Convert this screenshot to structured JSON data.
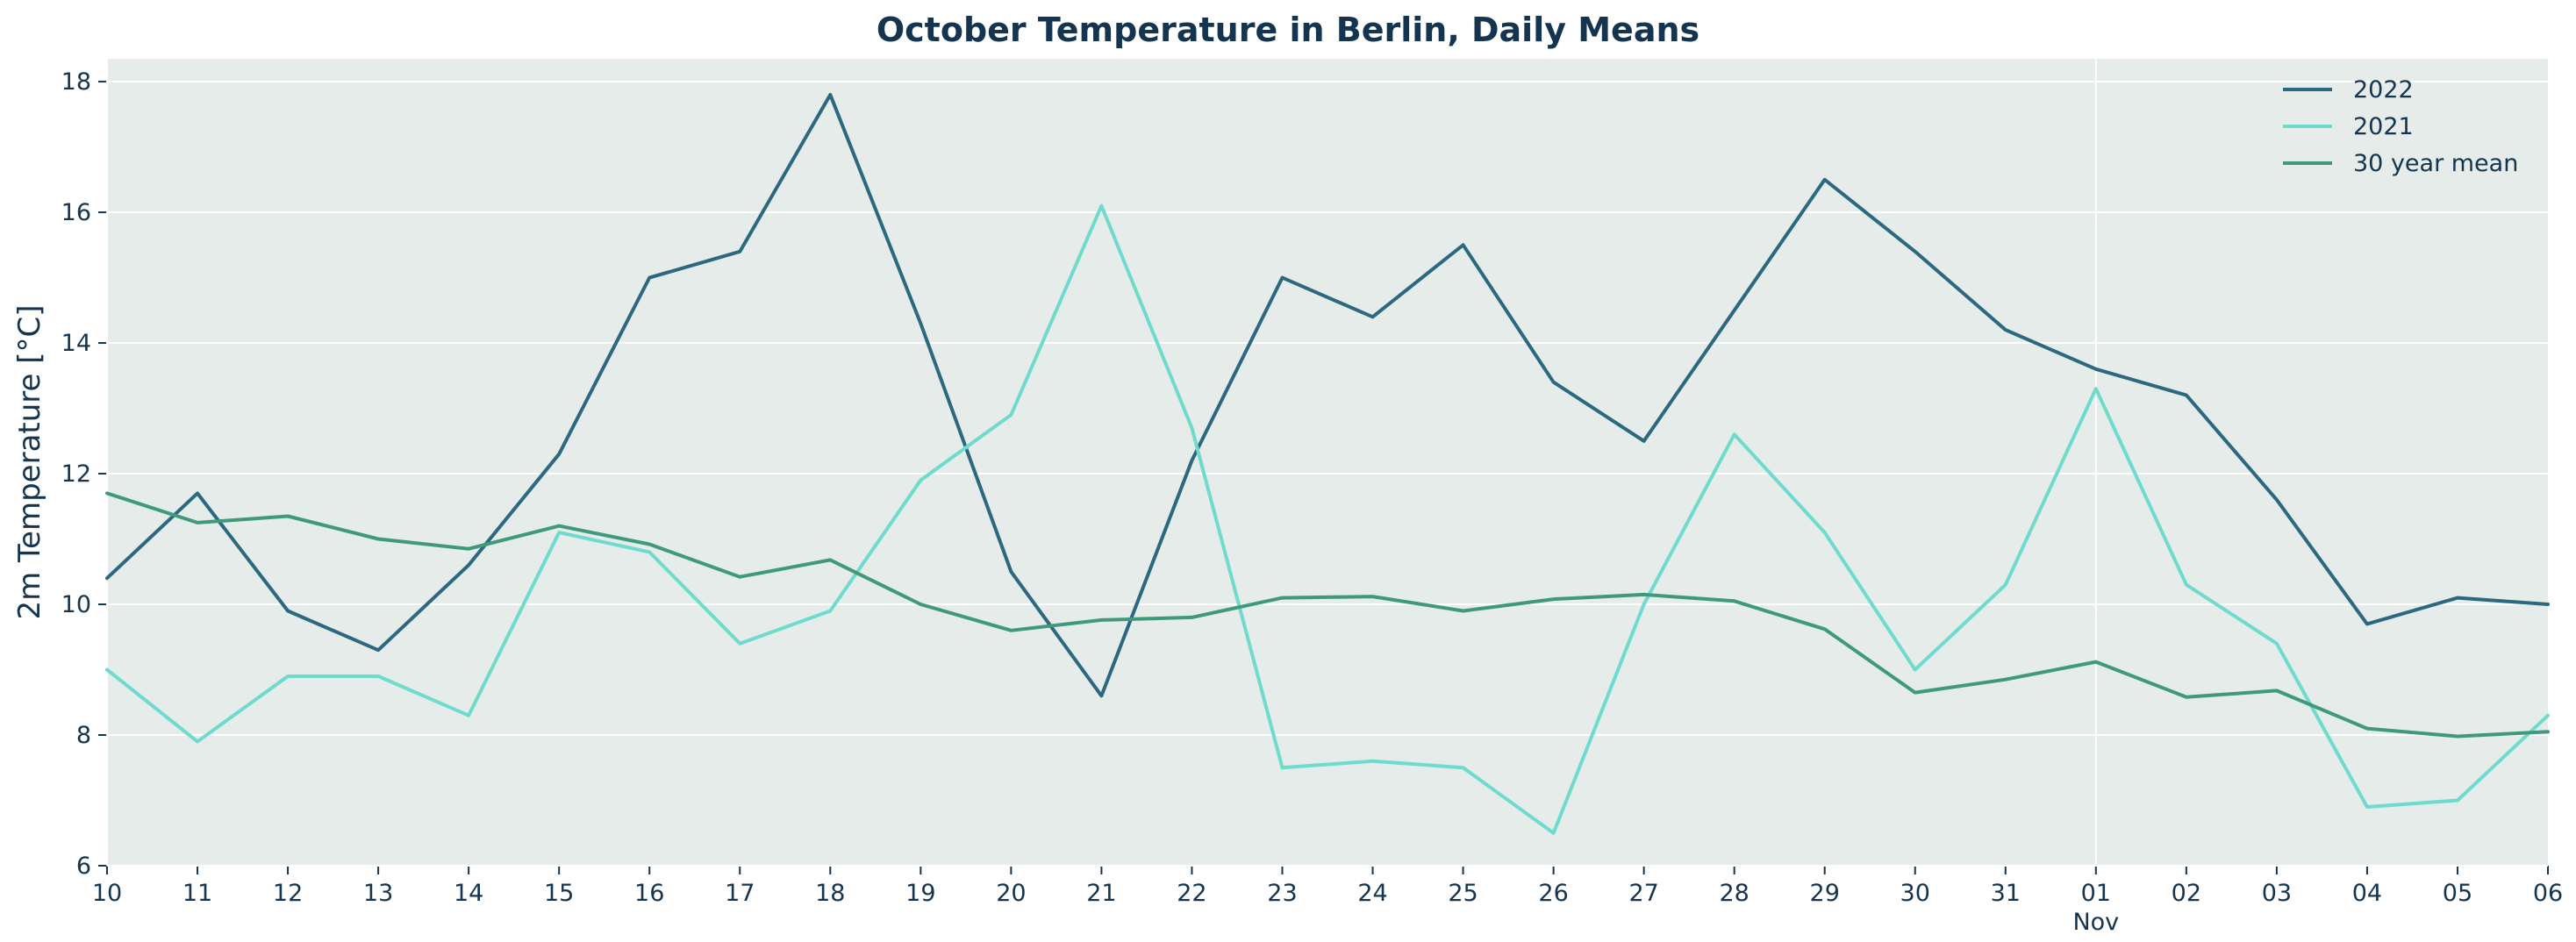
{
  "chart_data": {
    "type": "line",
    "title": "October Temperature in Berlin, Daily Means",
    "xlabel": "",
    "ylabel": "2m Temperature [°C]",
    "ylim": [
      6,
      18.35
    ],
    "yticks": [
      6,
      8,
      10,
      12,
      14,
      16,
      18
    ],
    "x": [
      "10",
      "11",
      "12",
      "13",
      "14",
      "15",
      "16",
      "17",
      "18",
      "19",
      "20",
      "21",
      "22",
      "23",
      "24",
      "25",
      "26",
      "27",
      "28",
      "29",
      "30",
      "31",
      "01",
      "02",
      "03",
      "04",
      "05",
      "06"
    ],
    "x_secondary_label": "Nov",
    "grid": true,
    "legend_position": "top-right",
    "series": [
      {
        "name": "2022",
        "color": "#2c6880",
        "values": [
          10.4,
          11.7,
          9.9,
          9.3,
          10.6,
          12.3,
          15.0,
          15.4,
          17.8,
          14.3,
          10.5,
          8.6,
          12.2,
          15.0,
          14.4,
          15.5,
          13.4,
          12.5,
          14.5,
          16.5,
          15.4,
          14.2,
          13.6,
          13.2,
          11.6,
          9.7,
          10.1,
          10.0
        ]
      },
      {
        "name": "2021",
        "color": "#6fdbcd",
        "values": [
          9.0,
          7.9,
          8.9,
          8.9,
          8.3,
          11.1,
          10.8,
          9.4,
          9.9,
          11.9,
          12.9,
          16.1,
          12.7,
          7.5,
          7.6,
          7.5,
          6.5,
          10.0,
          12.6,
          11.1,
          9.0,
          10.3,
          13.3,
          10.3,
          9.4,
          6.9,
          7.0,
          8.3
        ]
      },
      {
        "name": "30 year mean",
        "color": "#3f9a7c",
        "values": [
          11.7,
          11.25,
          11.35,
          11.0,
          10.85,
          11.2,
          10.92,
          10.42,
          10.68,
          10.0,
          9.6,
          9.76,
          9.8,
          10.1,
          10.12,
          9.9,
          10.08,
          10.15,
          10.05,
          9.62,
          8.65,
          8.85,
          9.12,
          8.58,
          8.68,
          8.1,
          7.98,
          8.05
        ]
      }
    ]
  }
}
